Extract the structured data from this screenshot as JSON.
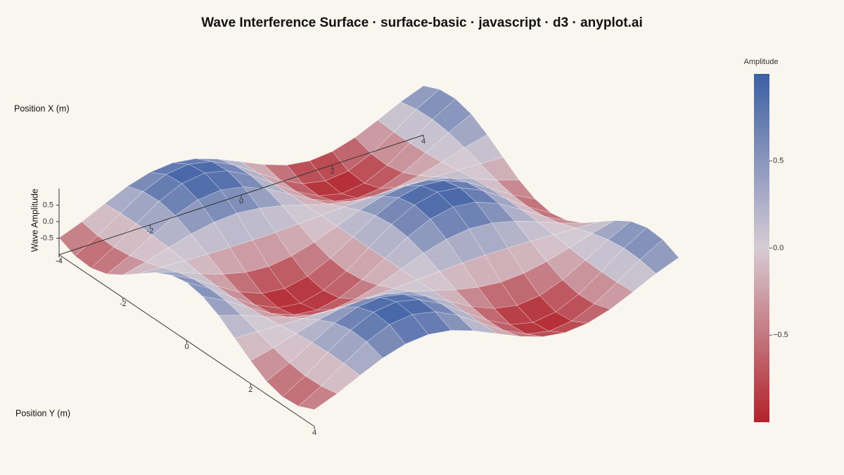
{
  "chart_data": {
    "type": "surface",
    "title": "Wave Interference Surface · surface-basic · javascript · d3 · anyplot.ai",
    "x_label": "Position X (m)",
    "y_label": "Position Y (m)",
    "z_label": "Wave Amplitude",
    "colorbar_title": "Amplitude",
    "x": [
      -4,
      -3.5,
      -3,
      -2.5,
      -2,
      -1.5,
      -1,
      -0.5,
      0,
      0.5,
      1,
      1.5,
      2,
      2.5,
      3,
      3.5,
      4
    ],
    "y": [
      -4,
      -3.5,
      -3,
      -2.5,
      -2,
      -1.5,
      -1,
      -0.5,
      0,
      0.5,
      1,
      1.5,
      2,
      2.5,
      3,
      3.5,
      4
    ],
    "z": [
      [
        -0.49,
        -0.23,
        0.09,
        0.39,
        0.59,
        0.65,
        0.55,
        0.31,
        0,
        -0.31,
        -0.55,
        -0.65,
        -0.59,
        -0.39,
        -0.09,
        0.23,
        0.49
      ],
      [
        -0.71,
        -0.33,
        0.13,
        0.56,
        0.85,
        0.93,
        0.79,
        0.45,
        0,
        -0.45,
        -0.79,
        -0.93,
        -0.85,
        -0.56,
        -0.13,
        0.33,
        0.71
      ],
      [
        -0.75,
        -0.35,
        0.14,
        0.59,
        0.9,
        0.99,
        0.83,
        0.47,
        0,
        -0.47,
        -0.83,
        -0.99,
        -0.9,
        -0.59,
        -0.14,
        0.35,
        0.75
      ],
      [
        -0.61,
        -0.28,
        0.11,
        0.48,
        0.73,
        0.8,
        0.67,
        0.38,
        0,
        -0.38,
        -0.67,
        -0.8,
        -0.73,
        -0.48,
        -0.11,
        0.28,
        0.61
      ],
      [
        -0.31,
        -0.15,
        0.06,
        0.25,
        0.38,
        0.42,
        0.35,
        0.2,
        0,
        -0.2,
        -0.35,
        -0.42,
        -0.38,
        -0.25,
        -0.06,
        0.15,
        0.31
      ],
      [
        0.05,
        0.02,
        -0.01,
        -0.04,
        -0.06,
        -0.07,
        -0.06,
        -0.03,
        0,
        0.03,
        0.06,
        0.07,
        0.06,
        0.04,
        0.01,
        -0.02,
        -0.05
      ],
      [
        0.41,
        0.19,
        -0.08,
        -0.32,
        -0.49,
        -0.54,
        -0.45,
        -0.26,
        0,
        0.26,
        0.45,
        0.54,
        0.49,
        0.32,
        0.08,
        -0.19,
        -0.41
      ],
      [
        0.66,
        0.31,
        -0.12,
        -0.53,
        -0.8,
        -0.88,
        -0.74,
        -0.42,
        0,
        0.42,
        0.74,
        0.88,
        0.8,
        0.53,
        0.12,
        -0.31,
        -0.66
      ],
      [
        0.76,
        0.35,
        -0.14,
        -0.6,
        -0.91,
        -1,
        -0.84,
        -0.48,
        0,
        0.48,
        0.84,
        1,
        0.91,
        0.6,
        0.14,
        -0.35,
        -0.76
      ],
      [
        0.66,
        0.31,
        -0.12,
        -0.53,
        -0.8,
        -0.88,
        -0.74,
        -0.42,
        0,
        0.42,
        0.74,
        0.88,
        0.8,
        0.53,
        0.12,
        -0.31,
        -0.66
      ],
      [
        0.41,
        0.19,
        -0.08,
        -0.32,
        -0.49,
        -0.54,
        -0.45,
        -0.26,
        0,
        0.26,
        0.45,
        0.54,
        0.49,
        0.32,
        0.08,
        -0.19,
        -0.41
      ],
      [
        0.05,
        0.02,
        -0.01,
        -0.04,
        -0.06,
        -0.07,
        -0.06,
        -0.03,
        0,
        0.03,
        0.06,
        0.07,
        0.06,
        0.04,
        0.01,
        -0.02,
        -0.05
      ],
      [
        -0.31,
        -0.15,
        0.06,
        0.25,
        0.38,
        0.42,
        0.35,
        0.2,
        0,
        -0.2,
        -0.35,
        -0.42,
        -0.38,
        -0.25,
        -0.06,
        0.15,
        0.31
      ],
      [
        -0.61,
        -0.28,
        0.11,
        0.48,
        0.73,
        0.8,
        0.67,
        0.38,
        0,
        -0.38,
        -0.67,
        -0.8,
        -0.73,
        -0.48,
        -0.11,
        0.28,
        0.61
      ],
      [
        -0.75,
        -0.35,
        0.14,
        0.59,
        0.9,
        0.99,
        0.83,
        0.47,
        0,
        -0.47,
        -0.83,
        -0.99,
        -0.9,
        -0.59,
        -0.14,
        0.35,
        0.75
      ],
      [
        -0.71,
        -0.33,
        0.13,
        0.56,
        0.85,
        0.93,
        0.79,
        0.45,
        0,
        -0.45,
        -0.79,
        -0.93,
        -0.85,
        -0.56,
        -0.13,
        0.33,
        0.71
      ],
      [
        -0.49,
        -0.23,
        0.09,
        0.39,
        0.59,
        0.65,
        0.55,
        0.31,
        0,
        -0.31,
        -0.55,
        -0.65,
        -0.59,
        -0.39,
        -0.09,
        0.23,
        0.49
      ]
    ],
    "xlim": [
      -4,
      4
    ],
    "ylim": [
      -4,
      4
    ],
    "zlim": [
      -1,
      1
    ],
    "xticks": [
      -4,
      -2,
      0,
      2,
      4
    ],
    "yticks": [
      -4,
      -2,
      0,
      2,
      4
    ],
    "zticks": [
      -0.5,
      {
        "value": 0,
        "label": "0.0"
      },
      0.5
    ],
    "clim": [
      -1,
      1
    ],
    "cticks": [
      {
        "value": -0.5,
        "label": "−0.5"
      },
      {
        "value": 0,
        "label": "0.0"
      },
      0.5
    ],
    "colorscale": [
      "#b2222a",
      "#d6ccd4",
      "#3c5fa5"
    ]
  }
}
